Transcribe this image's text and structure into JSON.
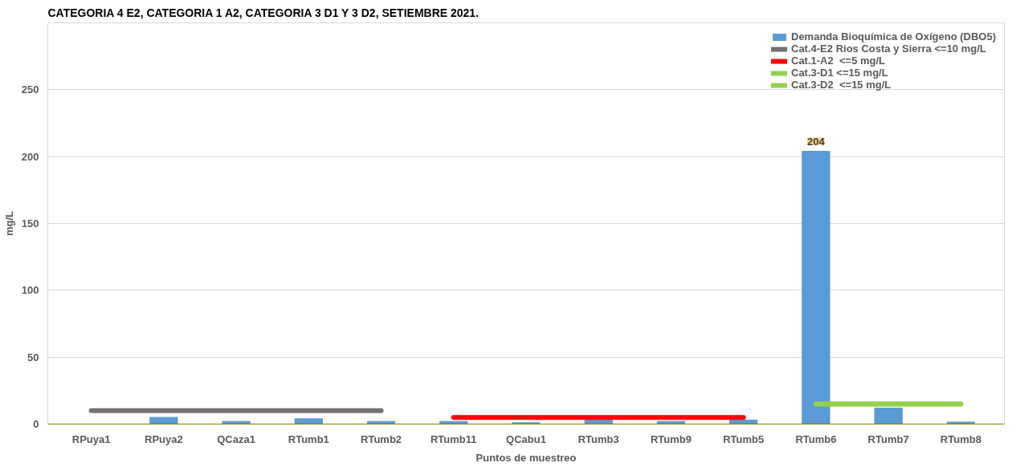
{
  "chart_data": {
    "type": "bar",
    "title": "CATEGORIA 4 E2, CATEGORIA 1 A2, CATEGORIA 3 D1 Y 3 D2, SETIEMBRE 2021.",
    "xlabel": "Puntos de muestreo",
    "ylabel": "mg/L",
    "categories": [
      "RPuya1",
      "RPuya2",
      "QCaza1",
      "RTumb1",
      "RTumb2",
      "RTumb11",
      "QCabu1",
      "RTumb3",
      "RTumb9",
      "RTumb5",
      "RTumb6",
      "RTumb7",
      "RTumb8"
    ],
    "series": [
      {
        "name": "Demanda Bioquímica de Oxígeno (DBO5)",
        "color": "#5b9bd5",
        "values": [
          0,
          5,
          2,
          4,
          2,
          2,
          1,
          3,
          2,
          3,
          204,
          12,
          1.5
        ],
        "value_labels": [
          null,
          null,
          null,
          null,
          null,
          null,
          null,
          null,
          null,
          null,
          "204",
          null,
          null
        ]
      },
      {
        "name": "Cat.4-E2 Rios Costa y Sierra <=10 mg/L",
        "type": "line",
        "color": "#767171",
        "values": [
          10,
          10,
          10,
          10,
          10,
          null,
          null,
          null,
          null,
          null,
          null,
          null,
          null
        ]
      },
      {
        "name": "Cat.1-A2  <=5 mg/L",
        "type": "line",
        "color": "#ff0000",
        "values": [
          null,
          null,
          null,
          null,
          null,
          5,
          5,
          5,
          5,
          5,
          null,
          null,
          null
        ]
      },
      {
        "name": "Cat.3-D1 <=15 mg/L",
        "type": "line",
        "color": "#92d050",
        "values": [
          null,
          null,
          null,
          null,
          null,
          null,
          null,
          null,
          null,
          null,
          15,
          15,
          15
        ]
      },
      {
        "name": "Cat.3-D2  <=15 mg/L",
        "type": "line",
        "color": "#92d050",
        "values": [
          null,
          null,
          null,
          null,
          null,
          null,
          null,
          null,
          null,
          null,
          15,
          15,
          15
        ]
      }
    ],
    "ylim": [
      0,
      300
    ],
    "yticks": [
      0,
      50,
      100,
      150,
      200,
      250
    ],
    "grid": "y",
    "legend": "top right"
  }
}
